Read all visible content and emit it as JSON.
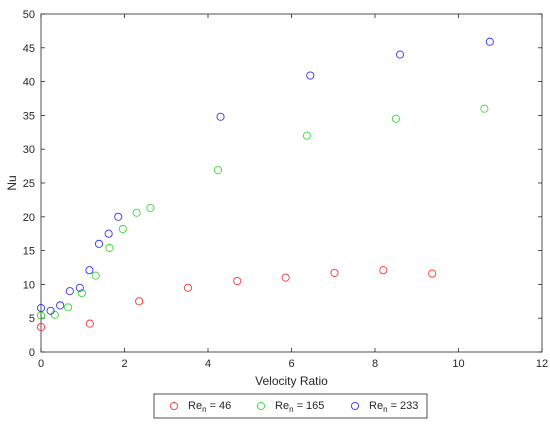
{
  "chart_data": {
    "type": "scatter",
    "xlabel": "Velocity Ratio",
    "ylabel": "Nu",
    "xlim": [
      0,
      12
    ],
    "ylim": [
      0,
      50
    ],
    "xticks": [
      0,
      2,
      4,
      6,
      8,
      10,
      12
    ],
    "yticks": [
      0,
      5,
      10,
      15,
      20,
      25,
      30,
      35,
      40,
      45,
      50
    ],
    "grid": false,
    "legend_position": "bottom-center",
    "series": [
      {
        "name": "Re_n = 46",
        "label_main": "Re",
        "label_sub": "n",
        "label_rest": " = 46",
        "color": "#ff3333",
        "x": [
          0.0,
          1.17,
          2.35,
          3.52,
          4.7,
          5.86,
          7.03,
          8.2,
          9.37
        ],
        "y": [
          3.7,
          4.2,
          7.5,
          9.5,
          10.5,
          11.0,
          11.7,
          12.1,
          11.6
        ]
      },
      {
        "name": "Re_n = 165",
        "label_main": "Re",
        "label_sub": "n",
        "label_rest": " = 165",
        "color": "#33dd33",
        "x": [
          0.0,
          0.33,
          0.65,
          0.98,
          1.31,
          1.64,
          1.96,
          2.29,
          2.62,
          4.24,
          6.37,
          8.5,
          10.62
        ],
        "y": [
          5.4,
          5.5,
          6.6,
          8.7,
          11.3,
          15.4,
          18.2,
          20.6,
          21.3,
          26.9,
          32.0,
          34.5,
          36.0
        ]
      },
      {
        "name": "Re_n = 233",
        "label_main": "Re",
        "label_sub": "n",
        "label_rest": " = 233",
        "color": "#3333ff",
        "x": [
          0.0,
          0.23,
          0.46,
          0.69,
          0.93,
          1.16,
          1.39,
          1.62,
          1.85,
          4.3,
          6.45,
          8.6,
          10.75
        ],
        "y": [
          6.5,
          6.1,
          6.9,
          9.0,
          9.5,
          12.1,
          16.0,
          17.5,
          20.0,
          34.8,
          40.9,
          44.0,
          45.9
        ]
      }
    ]
  }
}
